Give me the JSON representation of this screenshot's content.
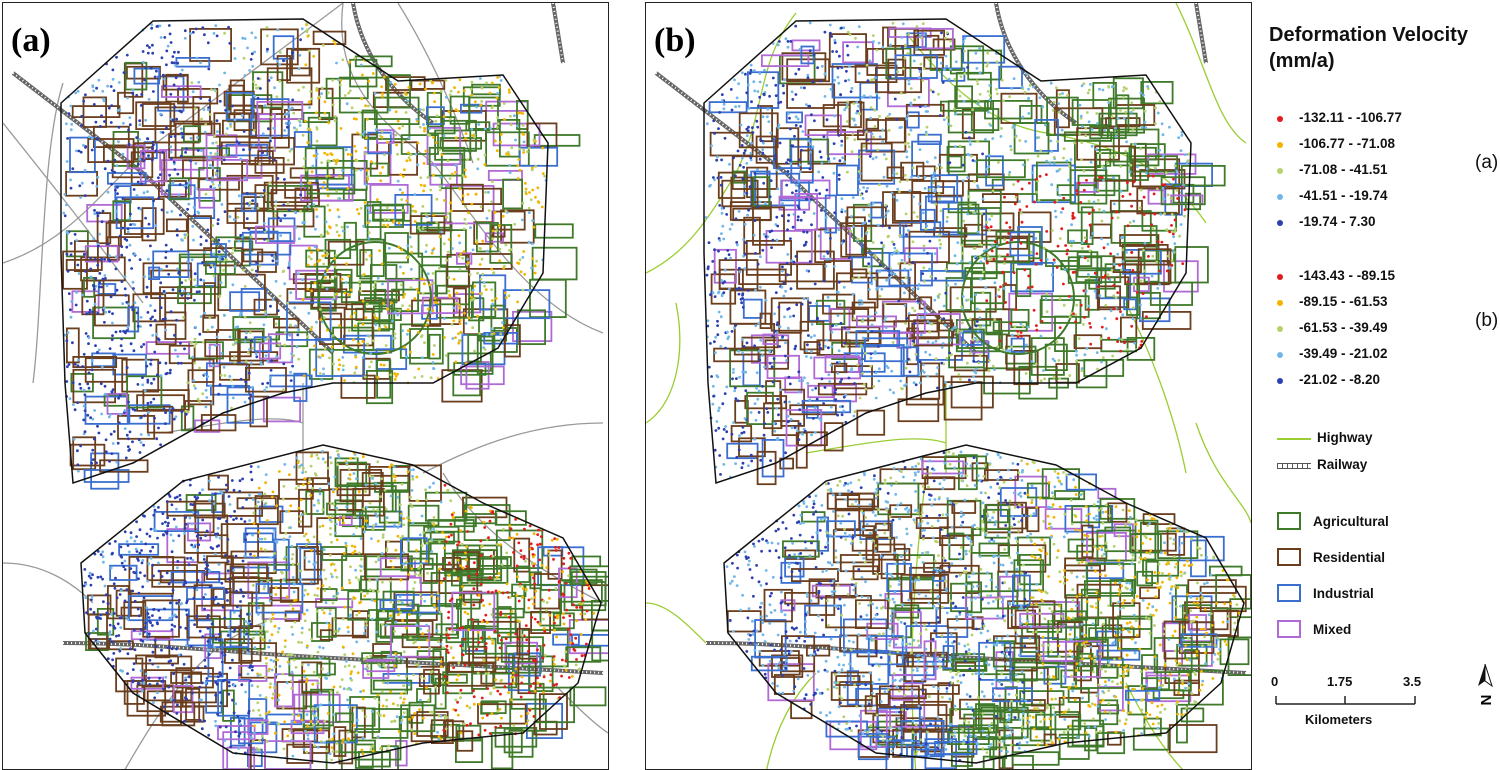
{
  "panels": [
    {
      "id": "a",
      "label": "(a)"
    },
    {
      "id": "b",
      "label": "(b)"
    }
  ],
  "legend": {
    "title_line1": "Deformation Velocity",
    "title_line2": "(mm/a)",
    "group_a": {
      "tag": "(a)",
      "classes": [
        {
          "range": "-132.11 - -106.77",
          "color": "#e41a1c"
        },
        {
          "range": "-106.77 - -71.08",
          "color": "#f4b400"
        },
        {
          "range": "-71.08 - -41.51",
          "color": "#b5d16b"
        },
        {
          "range": "-41.51 - -19.74",
          "color": "#6fb7e8"
        },
        {
          "range": "-19.74 - 7.30",
          "color": "#2b3fb0"
        }
      ]
    },
    "group_b": {
      "tag": "(b)",
      "classes": [
        {
          "range": "-143.43 - -89.15",
          "color": "#e41a1c"
        },
        {
          "range": "-89.15 - -61.53",
          "color": "#f4b400"
        },
        {
          "range": "-61.53 - -39.49",
          "color": "#b5d16b"
        },
        {
          "range": "-39.49 - -21.02",
          "color": "#6fb7e8"
        },
        {
          "range": "-21.02 - -8.20",
          "color": "#2b3fb0"
        }
      ]
    },
    "lines": [
      {
        "label": "Highway",
        "color": "#9acd32"
      },
      {
        "label": "Railway",
        "color": "#555555"
      }
    ],
    "land_use": [
      {
        "label": "Agricultural",
        "color": "#3f7a2a"
      },
      {
        "label": "Residential",
        "color": "#6b3e1e"
      },
      {
        "label": "Industrial",
        "color": "#3a6fd0"
      },
      {
        "label": "Mixed",
        "color": "#b06ad6"
      }
    ],
    "scale": {
      "ticks": [
        "0",
        "1.75",
        "3.5"
      ],
      "unit": "Kilometers"
    },
    "north": "N"
  }
}
